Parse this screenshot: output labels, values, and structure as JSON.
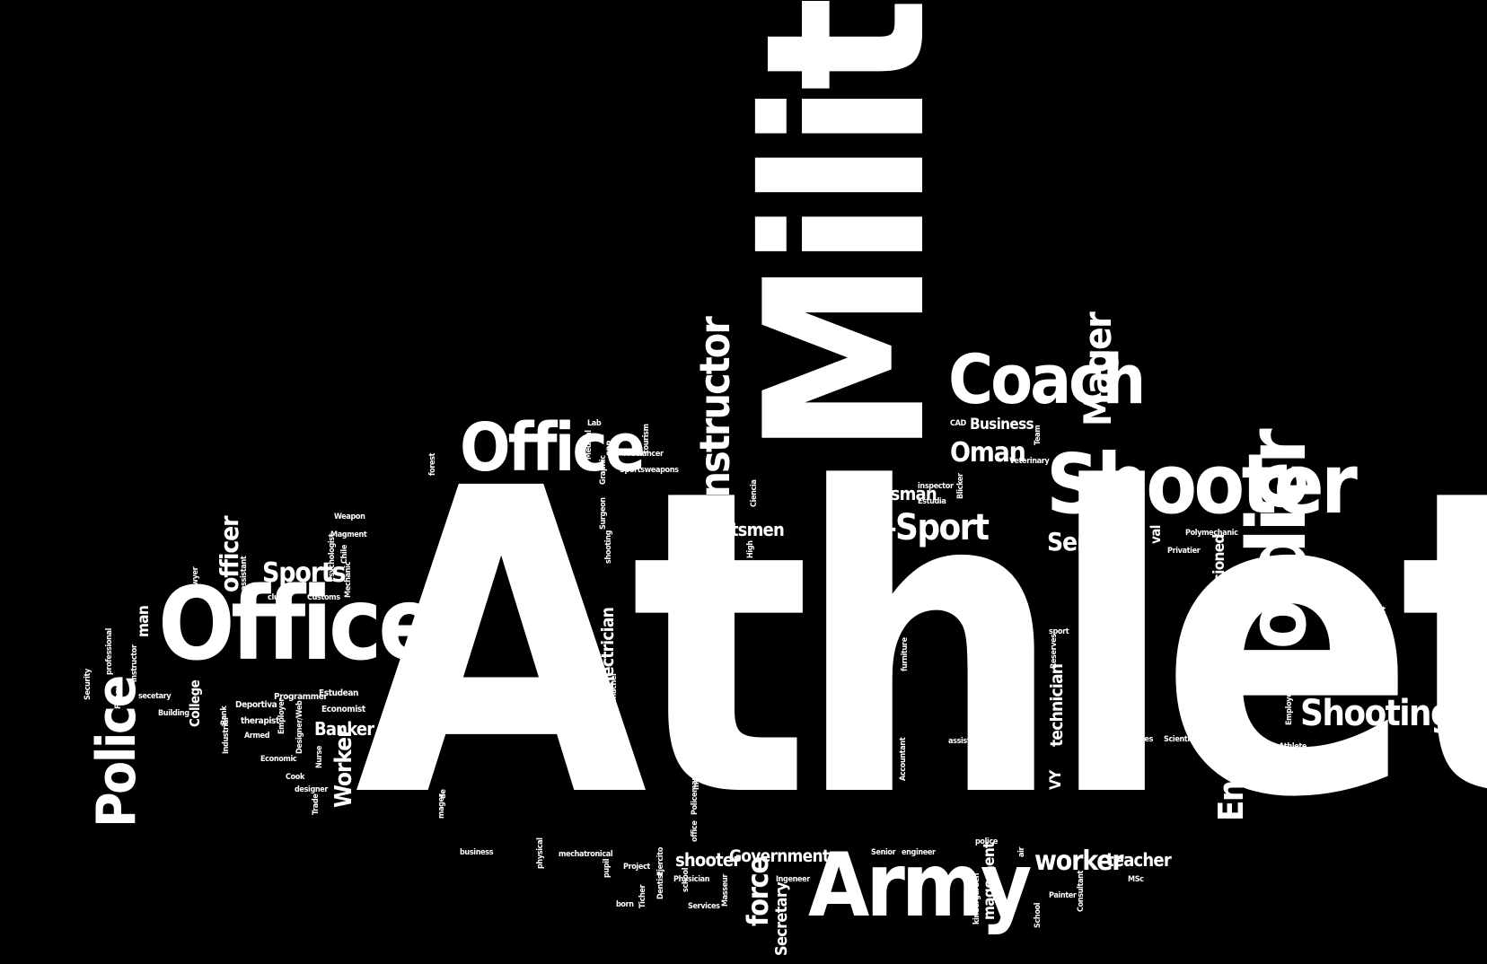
{
  "background": "#000000",
  "text_color": "#ffffff",
  "words": [
    "Athlete",
    "Military",
    "Army",
    "Officer",
    "Shooter",
    "Coach",
    "Soldier",
    "Office",
    "Instructor",
    "Police",
    "Shooting",
    "Engineer",
    "Mager",
    "Sport",
    "Air",
    "worker",
    "Oman",
    "Sports",
    "officer",
    "Service",
    "Government",
    "force",
    "Banker",
    "Worker",
    "Sportsman",
    "Sportsmen",
    "Teacher",
    "commissioned",
    "teacher",
    "shooter",
    "Electrician",
    "technician",
    "Non",
    "VY",
    "Secretary",
    "magement",
    "Business",
    "College",
    "man",
    "Estudean",
    "Economist",
    "Programmer",
    "therapist",
    "Deportiva",
    "Lab",
    "Medical",
    "SRP",
    "Freelancer",
    "Sportsweapons",
    "tourism",
    "Graphic",
    "Surgeon",
    "shooting",
    "forest",
    "warden",
    "maker",
    "Health",
    "Salesman",
    "Union",
    "Weapon",
    "Magment",
    "Chile",
    "Psychologist",
    "Mechanic",
    "Customs",
    "club",
    "assistant",
    "lawyer",
    "professional",
    "instructor",
    "Fireman",
    "Security",
    "secetary",
    "Building",
    "Industrial",
    "Bank",
    "Armed",
    "Employer",
    "Designer/Web",
    "Nurse",
    "Economic",
    "Cook",
    "designer",
    "Trade",
    "mager",
    "de",
    "business",
    "physical",
    "mechatronical",
    "pupil",
    "Project",
    "born",
    "Ticher",
    "Dentist",
    "Ejercito",
    "Physician",
    "Services",
    "school",
    "Masseur",
    "Ingeneer",
    "Policeman",
    "office",
    "mechanical",
    "Polymacenicen",
    "NCO",
    "Clerk",
    "Commacher",
    "tail",
    "High",
    "Ciencia",
    "Estudia",
    "inspector",
    "Blicker",
    "CAD",
    "Team",
    "Veterinary",
    "val",
    "Polymechanic",
    "Privatier",
    "Physiotherapist",
    "sport",
    "Reserves",
    "Bachelor",
    "Flooring",
    "furniture",
    "Accountant",
    "Senior",
    "engineer",
    "police",
    "air",
    "kindergarden",
    "School",
    "Painter",
    "Consultant",
    "MSc",
    "forces",
    "Scientist",
    "work",
    "Employee",
    "Athlete",
    "Watchmake",
    "Trainer"
  ]
}
